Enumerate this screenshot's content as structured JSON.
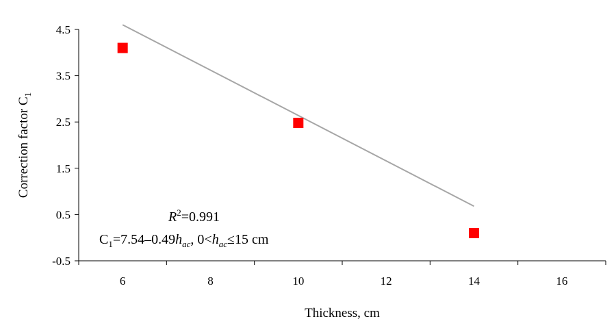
{
  "chart_data": {
    "type": "scatter",
    "xlabel": "Thickness, cm",
    "ylabel": "Correction factor C",
    "ylabel_sub": "1",
    "xlim": [
      5,
      17
    ],
    "ylim": [
      -0.5,
      4.5
    ],
    "xticks": [
      6,
      8,
      10,
      12,
      14,
      16
    ],
    "yticks": [
      -0.5,
      0.5,
      1.5,
      2.5,
      3.5,
      4.5
    ],
    "xtick_labels": [
      "6",
      "8",
      "10",
      "12",
      "14",
      "16"
    ],
    "ytick_labels": [
      "-0.5",
      "0.5",
      "1.5",
      "2.5",
      "3.5",
      "4.5"
    ],
    "series": [
      {
        "marker": "square",
        "color": "#ff0000",
        "points": [
          {
            "x": 6,
            "y": 4.1
          },
          {
            "x": 10,
            "y": 2.48
          },
          {
            "x": 14,
            "y": 0.1
          }
        ]
      }
    ],
    "trendline": {
      "color": "#a6a6a6",
      "intercept": 7.54,
      "slope": -0.49,
      "x_range": [
        6,
        14
      ]
    },
    "grid": false,
    "annotation": {
      "r2_symbol": "R",
      "r2_sup": "2",
      "r2_value": "=0.991",
      "eq_c": "C",
      "eq_c_sub": "1",
      "eq_body": "=7.54–0.49",
      "eq_h": "h",
      "eq_h_sub": "ac",
      "eq_mid": ", 0<",
      "eq_h2": "h",
      "eq_h2_sub": "ac",
      "eq_tail": "≤15 cm"
    }
  }
}
